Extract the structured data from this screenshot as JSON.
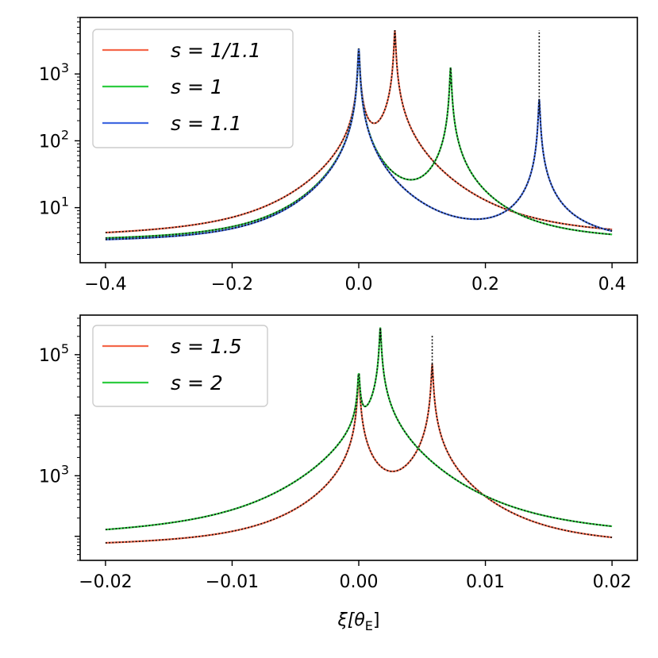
{
  "chart_data": [
    {
      "type": "line",
      "scale": {
        "x": "linear",
        "y": "log"
      },
      "xlim": [
        -0.44,
        0.44
      ],
      "ylim": [
        1.5,
        7000
      ],
      "x_ticks": [
        {
          "value": -0.4,
          "label": "−0.4"
        },
        {
          "value": -0.2,
          "label": "−0.2"
        },
        {
          "value": 0.0,
          "label": "0.0"
        },
        {
          "value": 0.2,
          "label": "0.2"
        },
        {
          "value": 0.4,
          "label": "0.4"
        }
      ],
      "y_ticks": [
        {
          "value": 10,
          "base": "10",
          "exp": "1"
        },
        {
          "value": 100,
          "base": "10",
          "exp": "2"
        },
        {
          "value": 1000,
          "base": "10",
          "exp": "3"
        }
      ],
      "legend": "top-left",
      "grid": false,
      "series": [
        {
          "name": "s = 1/1.1",
          "color": "#f4674a",
          "base": 2.5,
          "peaks": [
            {
              "x": 0.0,
              "height": 2400
            },
            {
              "x": 0.057,
              "height": 4500
            }
          ],
          "dotted_peak_height": 4500
        },
        {
          "name": "s = 1",
          "color": "#2ecc40",
          "base": 2.6,
          "peaks": [
            {
              "x": 0.0,
              "height": 2400
            },
            {
              "x": 0.145,
              "height": 1250
            }
          ],
          "dotted_peak_height": 700
        },
        {
          "name": "s = 1.1",
          "color": "#4169e1",
          "base": 2.6,
          "peaks": [
            {
              "x": 0.0,
              "height": 2400
            },
            {
              "x": 0.285,
              "height": 420
            }
          ],
          "dotted_peak_height": 4500
        }
      ]
    },
    {
      "type": "line",
      "scale": {
        "x": "linear",
        "y": "log"
      },
      "xlim": [
        -0.022,
        0.022
      ],
      "ylim": [
        40,
        450000
      ],
      "x_ticks": [
        {
          "value": -0.02,
          "label": "−0.02"
        },
        {
          "value": -0.01,
          "label": "−0.01"
        },
        {
          "value": 0.0,
          "label": "0.00"
        },
        {
          "value": 0.01,
          "label": "0.01"
        },
        {
          "value": 0.02,
          "label": "0.02"
        }
      ],
      "y_ticks": [
        {
          "value": 1000,
          "base": "10",
          "exp": "3"
        },
        {
          "value": 100000,
          "base": "10",
          "exp": "5"
        }
      ],
      "x_label": "ξ[θ",
      "x_label_sub": "E",
      "x_label_end": "]",
      "legend": "top-left",
      "grid": false,
      "series": [
        {
          "name": "s = 1.5",
          "color": "#f4674a",
          "base": 50,
          "peaks": [
            {
              "x": 0.0,
              "height": 48000
            },
            {
              "x": 0.0058,
              "height": 70000
            }
          ],
          "dotted_peak_height": 210000
        },
        {
          "name": "s = 2",
          "color": "#2ecc40",
          "base": 45,
          "peaks": [
            {
              "x": 0.0,
              "height": 48000
            },
            {
              "x": 0.0017,
              "height": 280000
            }
          ],
          "dotted_peak_height": 280000
        }
      ]
    }
  ]
}
